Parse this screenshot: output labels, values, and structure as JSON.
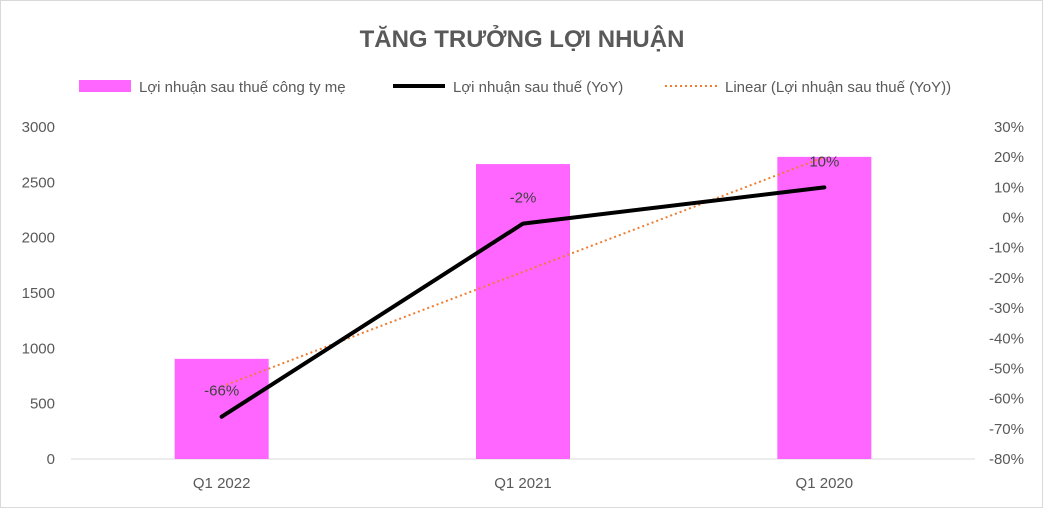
{
  "chart_data": {
    "type": "bar",
    "title": "TĂNG TRƯỞNG LỢI NHUẬN",
    "categories": [
      "Q1 2022",
      "Q1 2021",
      "Q1 2020"
    ],
    "series": [
      {
        "name": "Lợi nhuận sau thuế công ty mẹ",
        "type": "bar",
        "axis": "left",
        "color": "#ff66ff",
        "values": [
          905,
          2665,
          2730
        ]
      },
      {
        "name": "Lợi nhuận sau thuế (YoY)",
        "type": "line",
        "axis": "right",
        "color": "#000000",
        "values": [
          -66,
          -2,
          10
        ],
        "labels": [
          "-66%",
          "-2%",
          "10%"
        ]
      },
      {
        "name": "Linear (Lợi nhuận sau thuế (YoY))",
        "type": "trendline",
        "axis": "right",
        "style": "dotted",
        "color": "#ed7d31",
        "values": [
          -56,
          -18,
          20
        ]
      }
    ],
    "y_left": {
      "ylim": [
        0,
        3000
      ],
      "ticks": [
        0,
        500,
        1000,
        1500,
        2000,
        2500,
        3000
      ],
      "tick_labels": [
        "0",
        "500",
        "1000",
        "1500",
        "2000",
        "2500",
        "3000"
      ]
    },
    "y_right": {
      "ylim": [
        -80,
        30
      ],
      "ticks": [
        -80,
        -70,
        -60,
        -50,
        -40,
        -30,
        -20,
        -10,
        0,
        10,
        20,
        30
      ],
      "tick_labels": [
        "-80%",
        "-70%",
        "-60%",
        "-50%",
        "-40%",
        "-30%",
        "-20%",
        "-10%",
        "0%",
        "10%",
        "20%",
        "30%"
      ]
    },
    "legend_position": "top",
    "grid": false
  }
}
